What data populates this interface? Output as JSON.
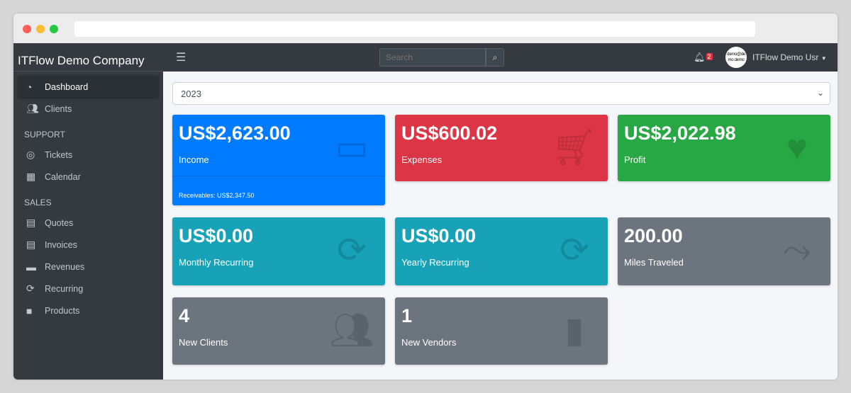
{
  "sidebar": {
    "brand": "ITFlow Demo Company",
    "items": [
      {
        "label": "Dashboard",
        "icon": "tachometer-icon"
      },
      {
        "label": "Clients",
        "icon": "users-icon"
      }
    ],
    "support_header": "SUPPORT",
    "support": [
      {
        "label": "Tickets",
        "icon": "life-ring-icon"
      },
      {
        "label": "Calendar",
        "icon": "calendar-icon"
      }
    ],
    "sales_header": "SALES",
    "sales": [
      {
        "label": "Quotes",
        "icon": "file-icon"
      },
      {
        "label": "Invoices",
        "icon": "invoice-icon"
      },
      {
        "label": "Revenues",
        "icon": "credit-card-icon"
      },
      {
        "label": "Recurring",
        "icon": "sync-icon"
      },
      {
        "label": "Products",
        "icon": "box-icon"
      }
    ]
  },
  "topnav": {
    "search_placeholder": "Search",
    "notif_count": "2",
    "avatar_text": "demo@demo demo",
    "user": "ITFlow Demo Usr"
  },
  "year": "2023",
  "cards": [
    {
      "value": "US$2,623.00",
      "label": "Income",
      "footer": "Receivables: US$2,347.50",
      "color": "#007bff"
    },
    {
      "value": "US$600.02",
      "label": "Expenses",
      "color": "#dc3545"
    },
    {
      "value": "US$2,022.98",
      "label": "Profit",
      "color": "#28a745"
    },
    {
      "value": "US$0.00",
      "label": "Monthly Recurring",
      "color": "#17a2b8"
    },
    {
      "value": "US$0.00",
      "label": "Yearly Recurring",
      "color": "#17a2b8"
    },
    {
      "value": "200.00",
      "label": "Miles Traveled",
      "color": "#6c757d"
    },
    {
      "value": "4",
      "label": "New Clients",
      "color": "#6c757d"
    },
    {
      "value": "1",
      "label": "New Vendors",
      "color": "#6c757d"
    }
  ]
}
